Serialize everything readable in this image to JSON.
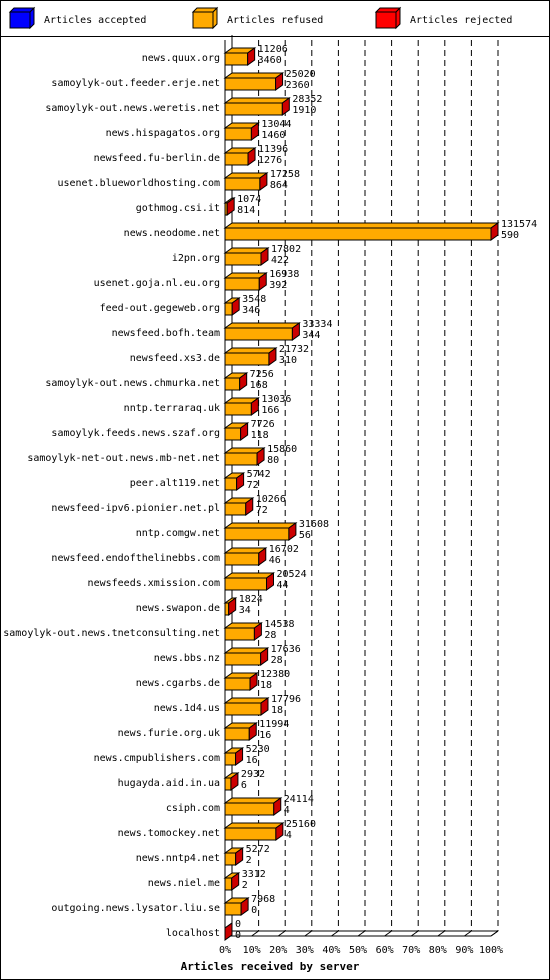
{
  "chart_data": {
    "type": "bar",
    "orientation": "horizontal",
    "xlabel": "Articles received by server",
    "legend": [
      {
        "name": "Articles accepted",
        "color": "#0000ff"
      },
      {
        "name": "Articles refused",
        "color": "#ffaa00"
      },
      {
        "name": "Articles rejected",
        "color": "#ff0000"
      }
    ],
    "bar_color": "#ffaa00",
    "end_color": "#cc0000",
    "categories": [
      "news.quux.org",
      "samoylyk-out.feeder.erje.net",
      "samoylyk-out.news.weretis.net",
      "news.hispagatos.org",
      "newsfeed.fu-berlin.de",
      "usenet.blueworldhosting.com",
      "gothmog.csi.it",
      "news.neodome.net",
      "i2pn.org",
      "usenet.goja.nl.eu.org",
      "feed-out.gegeweb.org",
      "newsfeed.bofh.team",
      "newsfeed.xs3.de",
      "samoylyk-out.news.chmurka.net",
      "nntp.terraraq.uk",
      "samoylyk.feeds.news.szaf.org",
      "samoylyk-net-out.news.mb-net.net",
      "peer.alt119.net",
      "newsfeed-ipv6.pionier.net.pl",
      "nntp.comgw.net",
      "newsfeed.endofthelinebbs.com",
      "newsfeeds.xmission.com",
      "news.swapon.de",
      "samoylyk-out.news.tnetconsulting.net",
      "news.bbs.nz",
      "news.cgarbs.de",
      "news.1d4.us",
      "news.furie.org.uk",
      "news.cmpublishers.com",
      "hugayda.aid.in.ua",
      "csiph.com",
      "news.tomockey.net",
      "news.nntp4.net",
      "news.niel.me",
      "outgoing.news.lysator.liu.se",
      "localhost"
    ],
    "values": [
      11206,
      25020,
      28352,
      13044,
      11396,
      17258,
      1074,
      131574,
      17802,
      16938,
      3548,
      33334,
      21732,
      7256,
      13036,
      7726,
      15860,
      5742,
      10266,
      31608,
      16702,
      20524,
      1824,
      14538,
      17636,
      12380,
      17796,
      11994,
      5230,
      2932,
      24114,
      25160,
      5272,
      3312,
      7968,
      0
    ],
    "values2": [
      3460,
      2360,
      1910,
      1460,
      1276,
      864,
      814,
      590,
      422,
      392,
      346,
      344,
      310,
      168,
      166,
      118,
      80,
      72,
      72,
      56,
      46,
      44,
      34,
      28,
      28,
      18,
      18,
      16,
      16,
      6,
      4,
      4,
      2,
      2,
      0,
      0
    ],
    "xlim": [
      0,
      100
    ],
    "xticks": [
      {
        "value": 0,
        "label": "0%"
      },
      {
        "value": 10,
        "label": "10%"
      },
      {
        "value": 20,
        "label": "20%"
      },
      {
        "value": 30,
        "label": "30%"
      },
      {
        "value": 40,
        "label": "40%"
      },
      {
        "value": 50,
        "label": "50%"
      },
      {
        "value": 60,
        "label": "60%"
      },
      {
        "value": 70,
        "label": "70%"
      },
      {
        "value": 80,
        "label": "80%"
      },
      {
        "value": 90,
        "label": "90%"
      },
      {
        "value": 100,
        "label": "100%"
      }
    ],
    "grid": true
  }
}
